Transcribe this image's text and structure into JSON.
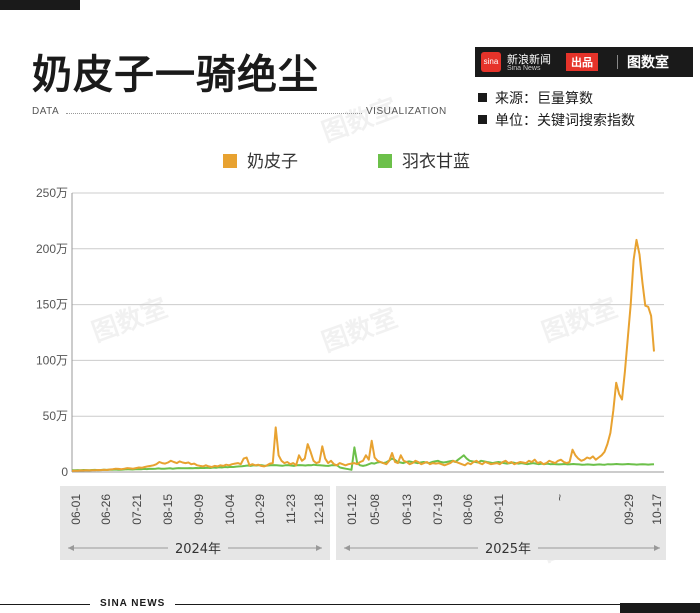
{
  "title": "奶皮子一骑绝尘",
  "sub_left": "DATA",
  "sub_right": "VISUALIZATION",
  "brand": {
    "name": "新浪新闻",
    "sub": "Sina News",
    "logo": "sina",
    "tag": "出品",
    "shu": "图数室"
  },
  "meta": {
    "source": "来源：巨量算数",
    "unit": "单位：关键词搜索指数"
  },
  "footer": "SINA NEWS",
  "watermark": "图数室",
  "colors": {
    "naipizi": "#e8a230",
    "yuyiganlan": "#6cc04a",
    "axis": "#cccccc",
    "band": "#e6e6e6"
  },
  "chart_data": {
    "type": "line",
    "ylim": [
      0,
      2500000
    ],
    "yticks": [
      0,
      500000,
      1000000,
      1500000,
      2000000,
      2500000
    ],
    "ytick_labels": [
      "0",
      "50万",
      "100万",
      "150万",
      "200万",
      "250万"
    ],
    "grid": true,
    "legend_placement": "top-center",
    "x_labels_2024": [
      "06-01",
      "06-26",
      "07-21",
      "08-15",
      "09-09",
      "10-04",
      "10-29",
      "11-23",
      "12-18"
    ],
    "x_labels_2025": [
      "01-12",
      "05-08",
      "06-13",
      "07-19",
      "08-06",
      "09-11",
      "~",
      "09-29",
      "10-17"
    ],
    "year_labels": [
      "2024年",
      "2025年"
    ],
    "series": [
      {
        "name": "奶皮子",
        "values": [
          10000,
          12000,
          11000,
          14000,
          13000,
          15000,
          14000,
          16000,
          15000,
          18000,
          17000,
          20000,
          18000,
          22000,
          25000,
          30000,
          28000,
          25000,
          30000,
          35000,
          32000,
          30000,
          35000,
          40000,
          38000,
          45000,
          50000,
          55000,
          60000,
          70000,
          90000,
          80000,
          75000,
          85000,
          100000,
          90000,
          80000,
          95000,
          85000,
          80000,
          85000,
          70000,
          75000,
          60000,
          55000,
          50000,
          60000,
          50000,
          45000,
          55000,
          50000,
          60000,
          55000,
          65000,
          60000,
          70000,
          75000,
          80000,
          70000,
          120000,
          130000,
          60000,
          70000,
          60000,
          65000,
          55000,
          50000,
          60000,
          75000,
          80000,
          400000,
          150000,
          100000,
          80000,
          90000,
          70000,
          80000,
          60000,
          150000,
          100000,
          120000,
          250000,
          180000,
          100000,
          80000,
          90000,
          230000,
          120000,
          80000,
          100000,
          70000,
          60000,
          80000,
          70000,
          60000,
          70000,
          75000,
          80000,
          70000,
          90000,
          100000,
          150000,
          110000,
          280000,
          130000,
          100000,
          90000,
          80000,
          70000,
          100000,
          170000,
          90000,
          80000,
          150000,
          100000,
          90000,
          70000,
          80000,
          100000,
          90000,
          70000,
          80000,
          90000,
          70000,
          80000,
          75000,
          80000,
          70000,
          60000,
          70000,
          80000,
          100000,
          90000,
          80000,
          70000,
          60000,
          80000,
          70000,
          90000,
          100000,
          80000,
          70000,
          90000,
          80000,
          70000,
          75000,
          80000,
          70000,
          90000,
          100000,
          80000,
          90000,
          70000,
          80000,
          90000,
          85000,
          80000,
          100000,
          90000,
          110000,
          80000,
          90000,
          70000,
          80000,
          100000,
          90000,
          80000,
          100000,
          110000,
          90000,
          80000,
          90000,
          200000,
          150000,
          120000,
          100000,
          110000,
          130000,
          120000,
          140000,
          110000,
          130000,
          150000,
          180000,
          250000,
          350000,
          550000,
          800000,
          700000,
          650000,
          900000,
          1200000,
          1500000,
          1900000,
          2080000,
          1950000,
          1700000,
          1490000,
          1480000,
          1400000,
          1080000
        ]
      },
      {
        "name": "羽衣甘蓝",
        "values": [
          15000,
          16000,
          17000,
          15000,
          18000,
          17000,
          16000,
          18000,
          19000,
          17000,
          18000,
          20000,
          19000,
          21000,
          20000,
          22000,
          21000,
          20000,
          22000,
          24000,
          23000,
          22000,
          25000,
          26000,
          24000,
          28000,
          26000,
          30000,
          28000,
          30000,
          32000,
          29000,
          30000,
          31000,
          33000,
          30000,
          32000,
          35000,
          33000,
          34000,
          33000,
          35000,
          34000,
          36000,
          35000,
          37000,
          36000,
          38000,
          36000,
          40000,
          38000,
          42000,
          40000,
          45000,
          43000,
          46000,
          45000,
          48000,
          50000,
          52000,
          55000,
          58000,
          55000,
          60000,
          58000,
          62000,
          60000,
          55000,
          58000,
          60000,
          62000,
          60000,
          58000,
          56000,
          60000,
          62000,
          58000,
          55000,
          60000,
          62000,
          60000,
          58000,
          62000,
          60000,
          65000,
          62000,
          60000,
          58000,
          56000,
          55000,
          60000,
          62000,
          60000,
          40000,
          35000,
          30000,
          25000,
          20000,
          220000,
          80000,
          60000,
          55000,
          60000,
          70000,
          80000,
          75000,
          85000,
          90000,
          80000,
          85000,
          100000,
          120000,
          110000,
          90000,
          85000,
          80000,
          90000,
          95000,
          90000,
          85000,
          80000,
          85000,
          90000,
          85000,
          80000,
          90000,
          95000,
          100000,
          90000,
          85000,
          90000,
          95000,
          100000,
          90000,
          110000,
          130000,
          150000,
          120000,
          100000,
          95000,
          90000,
          85000,
          100000,
          95000,
          90000,
          85000,
          80000,
          85000,
          90000,
          85000,
          80000,
          75000,
          80000,
          85000,
          80000,
          75000,
          80000,
          75000,
          70000,
          75000,
          80000,
          75000,
          70000,
          75000,
          70000,
          75000,
          70000,
          72000,
          70000,
          68000,
          70000,
          72000,
          68000,
          70000,
          72000,
          70000,
          68000,
          65000,
          66000,
          68000,
          66000,
          64000,
          66000,
          68000,
          66000,
          65000,
          70000,
          68000,
          70000,
          72000,
          70000,
          68000,
          70000,
          72000,
          70000,
          68000,
          66000,
          68000,
          70000,
          68000,
          66000,
          68000,
          70000
        ]
      }
    ]
  }
}
